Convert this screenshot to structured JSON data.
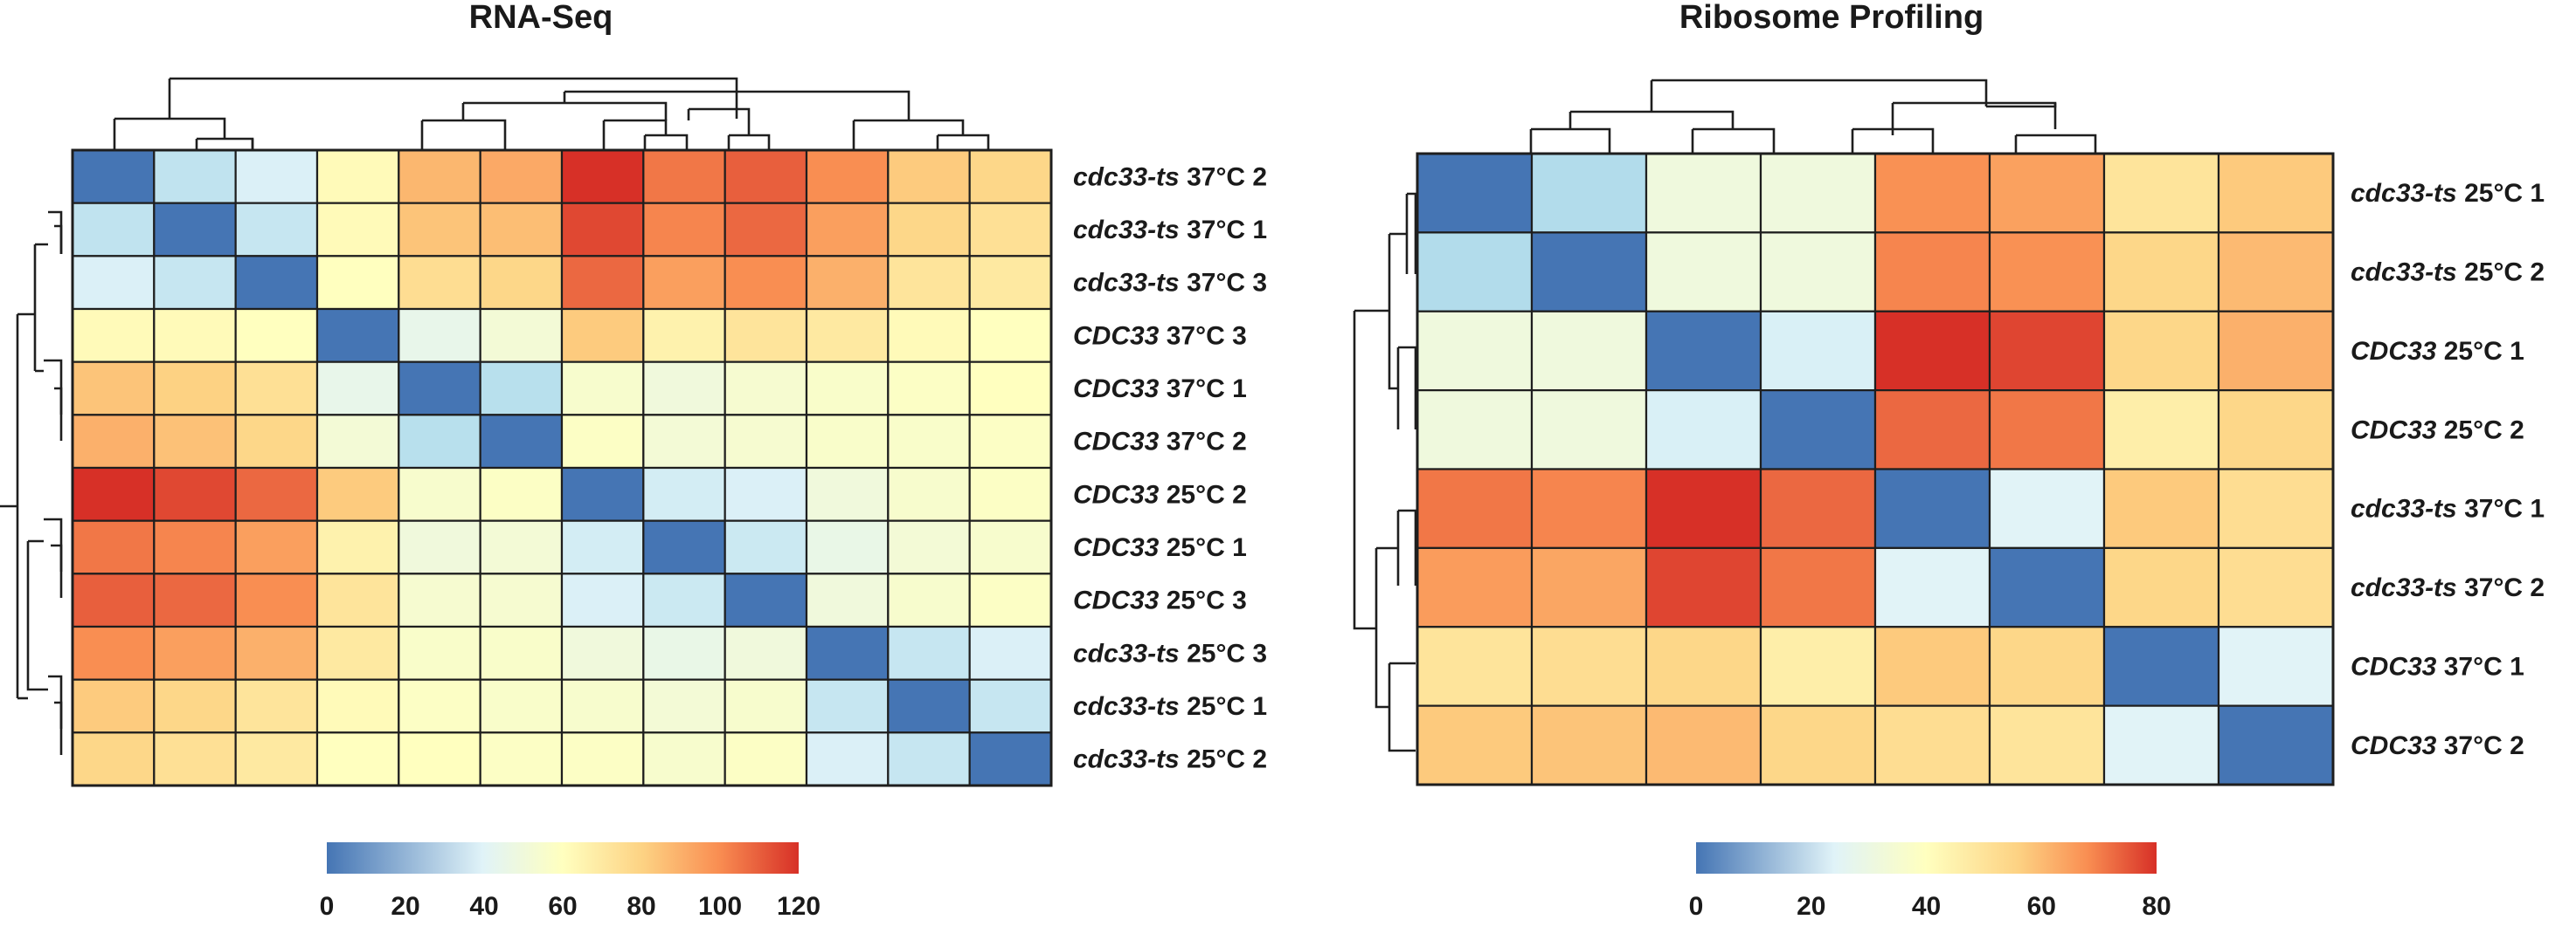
{
  "chart_data": [
    {
      "type": "heatmap",
      "title": "RNA-Seq",
      "rows": [
        {
          "gene": "cdc33-ts",
          "condition": "37°C 2"
        },
        {
          "gene": "cdc33-ts",
          "condition": "37°C 1"
        },
        {
          "gene": "cdc33-ts",
          "condition": "37°C 3"
        },
        {
          "gene": "CDC33",
          "condition": "37°C 3"
        },
        {
          "gene": "CDC33",
          "condition": "37°C 1"
        },
        {
          "gene": "CDC33",
          "condition": "37°C 2"
        },
        {
          "gene": "CDC33",
          "condition": "25°C 2"
        },
        {
          "gene": "CDC33",
          "condition": "25°C 1"
        },
        {
          "gene": "CDC33",
          "condition": "25°C 3"
        },
        {
          "gene": "cdc33-ts",
          "condition": "25°C 3"
        },
        {
          "gene": "cdc33-ts",
          "condition": "25°C 1"
        },
        {
          "gene": "cdc33-ts",
          "condition": "25°C 2"
        }
      ],
      "values": [
        [
          0,
          28,
          38,
          62,
          88,
          92,
          120,
          105,
          110,
          100,
          82,
          78
        ],
        [
          28,
          0,
          30,
          62,
          84,
          86,
          115,
          102,
          108,
          95,
          78,
          74
        ],
        [
          38,
          30,
          0,
          60,
          75,
          78,
          108,
          95,
          100,
          90,
          72,
          70
        ],
        [
          62,
          62,
          60,
          0,
          45,
          52,
          82,
          66,
          72,
          70,
          62,
          60
        ],
        [
          84,
          80,
          74,
          45,
          0,
          25,
          55,
          50,
          54,
          56,
          58,
          60
        ],
        [
          90,
          85,
          78,
          52,
          25,
          0,
          58,
          52,
          54,
          56,
          56,
          58
        ],
        [
          120,
          115,
          108,
          82,
          55,
          58,
          0,
          35,
          38,
          50,
          55,
          58
        ],
        [
          105,
          102,
          95,
          66,
          50,
          52,
          35,
          0,
          32,
          46,
          52,
          55
        ],
        [
          110,
          108,
          100,
          72,
          54,
          54,
          38,
          32,
          0,
          50,
          55,
          58
        ],
        [
          100,
          95,
          90,
          70,
          56,
          56,
          50,
          46,
          50,
          0,
          30,
          38
        ],
        [
          82,
          78,
          72,
          62,
          58,
          56,
          55,
          52,
          55,
          30,
          0,
          30
        ],
        [
          78,
          74,
          70,
          60,
          60,
          58,
          58,
          55,
          58,
          38,
          30,
          0
        ]
      ],
      "colorbar": {
        "min": 0,
        "max": 120,
        "ticks": [
          0,
          20,
          40,
          60,
          80,
          100,
          120
        ]
      }
    },
    {
      "type": "heatmap",
      "title": "Ribosome Profiling",
      "rows": [
        {
          "gene": "cdc33-ts",
          "condition": "25°C 1"
        },
        {
          "gene": "cdc33-ts",
          "condition": "25°C 2"
        },
        {
          "gene": "CDC33",
          "condition": "25°C 1"
        },
        {
          "gene": "CDC33",
          "condition": "25°C 2"
        },
        {
          "gene": "cdc33-ts",
          "condition": "37°C 1"
        },
        {
          "gene": "cdc33-ts",
          "condition": "37°C 2"
        },
        {
          "gene": "CDC33",
          "condition": "37°C 1"
        },
        {
          "gene": "CDC33",
          "condition": "37°C 2"
        }
      ],
      "values": [
        [
          0,
          15,
          33,
          33,
          66,
          63,
          48,
          55
        ],
        [
          15,
          0,
          33,
          33,
          68,
          66,
          52,
          58
        ],
        [
          33,
          33,
          0,
          25,
          80,
          77,
          52,
          60
        ],
        [
          33,
          33,
          25,
          0,
          72,
          70,
          45,
          52
        ],
        [
          70,
          68,
          80,
          72,
          0,
          27,
          55,
          50
        ],
        [
          64,
          62,
          77,
          70,
          27,
          0,
          52,
          50
        ],
        [
          48,
          50,
          52,
          45,
          55,
          52,
          0,
          27
        ],
        [
          55,
          56,
          58,
          52,
          50,
          48,
          27,
          0
        ]
      ],
      "colorbar": {
        "min": 0,
        "max": 80,
        "ticks": [
          0,
          20,
          40,
          60,
          80
        ]
      }
    }
  ],
  "colorscale": [
    "#4575b4",
    "#abd9e9",
    "#e0f3f8",
    "#ffffbf",
    "#fdd283",
    "#f98e52",
    "#d73027"
  ]
}
